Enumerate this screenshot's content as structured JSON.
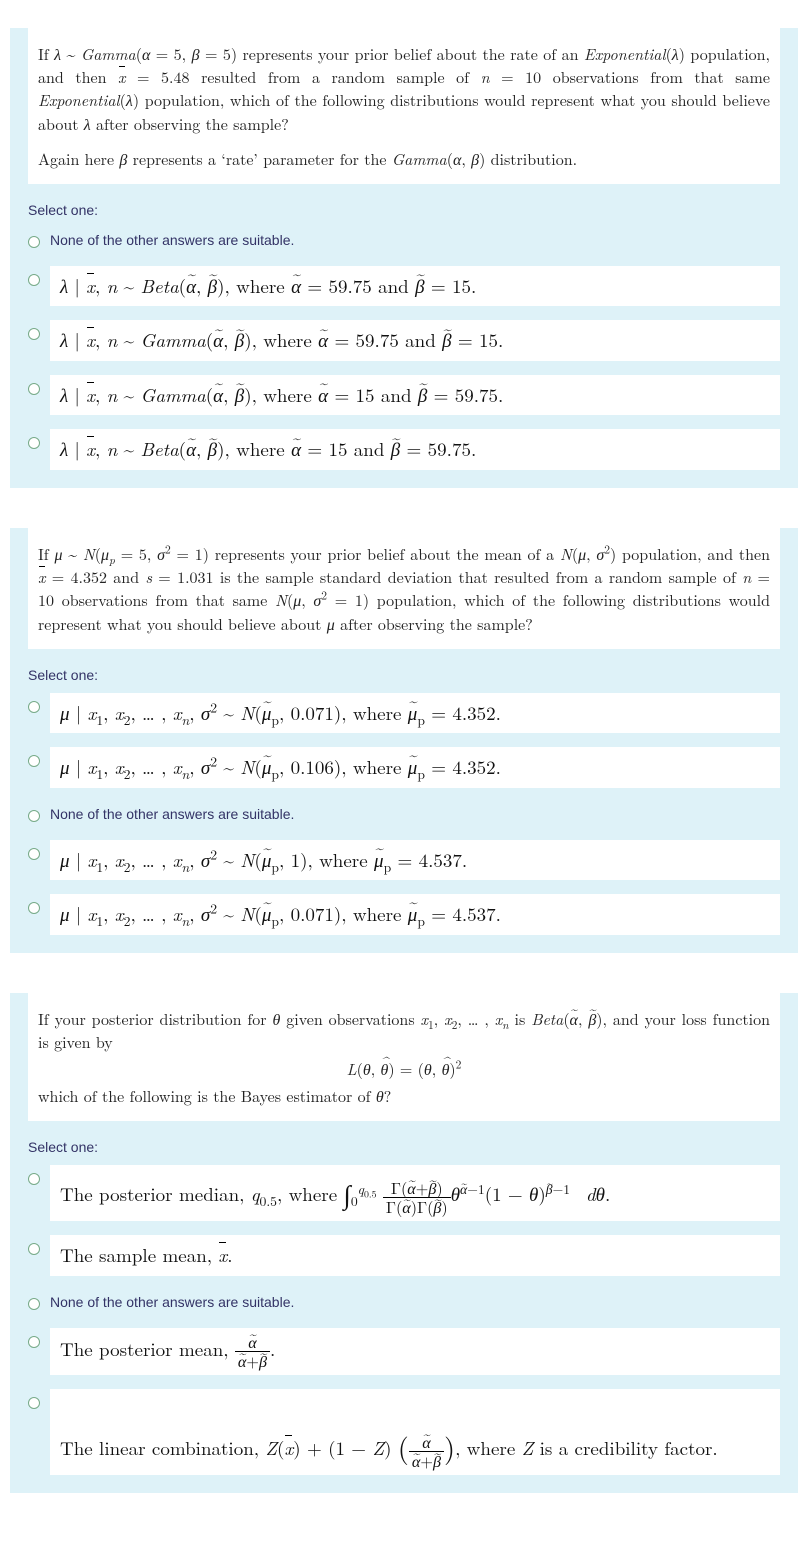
{
  "questions": [
    {
      "prompt_html": "If <span class='math-i'>λ</span> ~ <span class='math-i'>Gamma</span>(<span class='math-i'>α</span> = 5, <span class='math-i'>β</span> = 5) represents your prior belief about the rate of an <span class='math-i'>Exponential</span>(<span class='math-i'>λ</span>) population, and then <span class='bar-over math-i'>x</span> = 5.48 resulted from a random sample of <span class='math-i'>n</span> = 10 observations from that same <span class='math-i'>Exponential</span>(<span class='math-i'>λ</span>) population, which of the following distributions would represent what you should believe about <span class='math-i'>λ</span> after observing the sample?",
      "prompt2_html": "Again here <span class='math-i'>β</span> represents a &lsquo;rate&rsquo; parameter for the <span class='math-i'>Gamma</span>(<span class='math-i'>α</span>, <span class='math-i'>β</span>) distribution.",
      "select_label": "Select one:",
      "options": [
        {
          "plain": true,
          "html": "None of the other answers are suitable."
        },
        {
          "plain": false,
          "html": "<span class='math-i'>λ</span> | <span class='bar-over math-i'>x</span>, <span class='math-i'>n</span> ~ <span class='math-i'>Beta</span>(<span class='tilde-over math-i'>α</span>, <span class='tilde-over math-i'>β</span>), where <span class='tilde-over math-i'>α</span> = 59.75 and <span class='tilde-over math-i'>β</span> = 15."
        },
        {
          "plain": false,
          "html": "<span class='math-i'>λ</span> | <span class='bar-over math-i'>x</span>, <span class='math-i'>n</span> ~ <span class='math-i'>Gamma</span>(<span class='tilde-over math-i'>α</span>, <span class='tilde-over math-i'>β</span>), where <span class='tilde-over math-i'>α</span> = 59.75 and <span class='tilde-over math-i'>β</span> = 15."
        },
        {
          "plain": false,
          "html": "<span class='math-i'>λ</span> | <span class='bar-over math-i'>x</span>, <span class='math-i'>n</span> ~ <span class='math-i'>Gamma</span>(<span class='tilde-over math-i'>α</span>, <span class='tilde-over math-i'>β</span>), where <span class='tilde-over math-i'>α</span> = 15 and <span class='tilde-over math-i'>β</span> = 59.75."
        },
        {
          "plain": false,
          "html": "<span class='math-i'>λ</span> | <span class='bar-over math-i'>x</span>, <span class='math-i'>n</span> ~ <span class='math-i'>Beta</span>(<span class='tilde-over math-i'>α</span>, <span class='tilde-over math-i'>β</span>), where <span class='tilde-over math-i'>α</span> = 15 and <span class='tilde-over math-i'>β</span> = 59.75."
        }
      ]
    },
    {
      "prompt_html": "If <span class='math-i'>μ</span> ~ <span class='math-i'>N</span>(<span class='math-i'>μ<sub>p</sub></span> = 5, <span class='math-i'>σ</span><sup>2</sup> = 1) represents your prior belief about the mean of a <span class='math-i'>N</span>(<span class='math-i'>μ</span>, <span class='math-i'>σ</span><sup>2</sup>) population, and then <span class='bar-over math-i'>x</span> = 4.352 and <span class='math-i'>s</span> = 1.031 is the sample standard deviation that resulted from a random sample of <span class='math-i'>n</span> = 10 observations from that same <span class='math-i'>N</span>(<span class='math-i'>μ</span>, <span class='math-i'>σ</span><sup>2</sup> = 1) population, which of the following distributions would represent what you should believe about <span class='math-i'>μ</span> after observing the sample?",
      "prompt2_html": "",
      "select_label": "Select one:",
      "options": [
        {
          "plain": false,
          "html": "<span class='math-i'>μ</span> | <span class='math-i'>x</span><sub>1</sub>, <span class='math-i'>x</span><sub>2</sub>, … , <span class='math-i'>x<sub>n</sub></span>, <span class='math-i'>σ</span><sup>2</sup> ~ <span class='math-i'>N</span>(<span class='tilde-over math-i'>μ</span><sub>p</sub>, 0.071), where <span class='tilde-over math-i'>μ</span><sub>p</sub> = 4.352."
        },
        {
          "plain": false,
          "html": "<span class='math-i'>μ</span> | <span class='math-i'>x</span><sub>1</sub>, <span class='math-i'>x</span><sub>2</sub>, … , <span class='math-i'>x<sub>n</sub></span>, <span class='math-i'>σ</span><sup>2</sup> ~ <span class='math-i'>N</span>(<span class='tilde-over math-i'>μ</span><sub>p</sub>, 0.106), where <span class='tilde-over math-i'>μ</span><sub>p</sub> = 4.352."
        },
        {
          "plain": true,
          "html": "None of the other answers are suitable."
        },
        {
          "plain": false,
          "html": "<span class='math-i'>μ</span> | <span class='math-i'>x</span><sub>1</sub>, <span class='math-i'>x</span><sub>2</sub>, … , <span class='math-i'>x<sub>n</sub></span>, <span class='math-i'>σ</span><sup>2</sup> ~ <span class='math-i'>N</span>(<span class='tilde-over math-i'>μ</span><sub>p</sub>,  1), where <span class='tilde-over math-i'>μ</span><sub>p</sub> = 4.537."
        },
        {
          "plain": false,
          "html": "<span class='math-i'>μ</span> | <span class='math-i'>x</span><sub>1</sub>, <span class='math-i'>x</span><sub>2</sub>, … , <span class='math-i'>x<sub>n</sub></span>, <span class='math-i'>σ</span><sup>2</sup> ~ <span class='math-i'>N</span>(<span class='tilde-over math-i'>μ</span><sub>p</sub>, 0.071), where <span class='tilde-over math-i'>μ</span><sub>p</sub> = 4.537."
        }
      ]
    },
    {
      "prompt_html": "If your posterior distribution for <span class='math-i'>θ</span> given observations <span class='math-i'>x</span><sub>1</sub>, <span class='math-i'>x</span><sub>2</sub>, … , <span class='math-i'>x<sub>n</sub></span> is <span class='math-i'>Beta</span>(<span class='tilde-over math-i'>α</span>, <span class='tilde-over math-i'>β</span>), and your loss function is given by<span class='center-eq'><span class='math-i'>L</span>(<span class='math-i'>θ</span>, <span class='hat-over math-i'>θ</span>) = (<span class='math-i'>θ</span>, <span class='hat-over math-i'>θ</span>)<sup>2</sup></span>which of the following is the Bayes estimator of <span class='math-i'>θ</span>?",
      "prompt2_html": "",
      "select_label": "Select one:",
      "options": [
        {
          "plain": false,
          "html": "The posterior median, <span class='math-i'>q</span><sub>0.5</sub>, where <span class='int'>∫</span><sub>0</sub><sup><span class='math-i'>q</span><sub>0.5</sub></sup> <span class='frac'><span class='num'>Γ(<span class='tilde-over math-i'>α</span>+<span class='tilde-over math-i'>β</span>)</span><span class='den'>Γ(<span class='tilde-over math-i'>α</span>)Γ(<span class='tilde-over math-i'>β</span>)</span></span><span class='math-i'>θ</span><sup><span class='tilde-over math-i'>α</span>−1</sup>(1 − <span class='math-i'>θ</span>)<sup><span class='tilde-over math-i'>β</span>−1</sup> &nbsp;<span class='math-i'>dθ</span>."
        },
        {
          "plain": false,
          "html": "The sample mean, <span class='bar-over math-i'>x</span>."
        },
        {
          "plain": true,
          "html": "None of the other answers are suitable."
        },
        {
          "plain": false,
          "html": "The posterior mean, <span class='frac'><span class='num'><span class='tilde-over math-i'>α</span></span><span class='den'><span class='tilde-over math-i'>α</span>+<span class='tilde-over math-i'>β</span></span></span>."
        },
        {
          "plain": false,
          "html": "<br>The linear combination, <span class='math-i'>Z</span>(<span class='bar-over math-i'>x</span>) + (1 − <span class='math-i'>Z</span>) <span class='paren-lg'>(</span><span class='frac'><span class='num'><span class='tilde-over math-i'>α</span></span><span class='den'><span class='tilde-over math-i'>α</span>+<span class='tilde-over math-i'>β</span></span></span><span class='paren-lg'>)</span>, where <span class='math-i'>Z</span> is a credibility factor."
        }
      ]
    }
  ],
  "colors": {
    "block_bg": "#def2f8",
    "text_bg": "#ffffff",
    "label_color": "#336",
    "radio_border": "#7a8"
  }
}
